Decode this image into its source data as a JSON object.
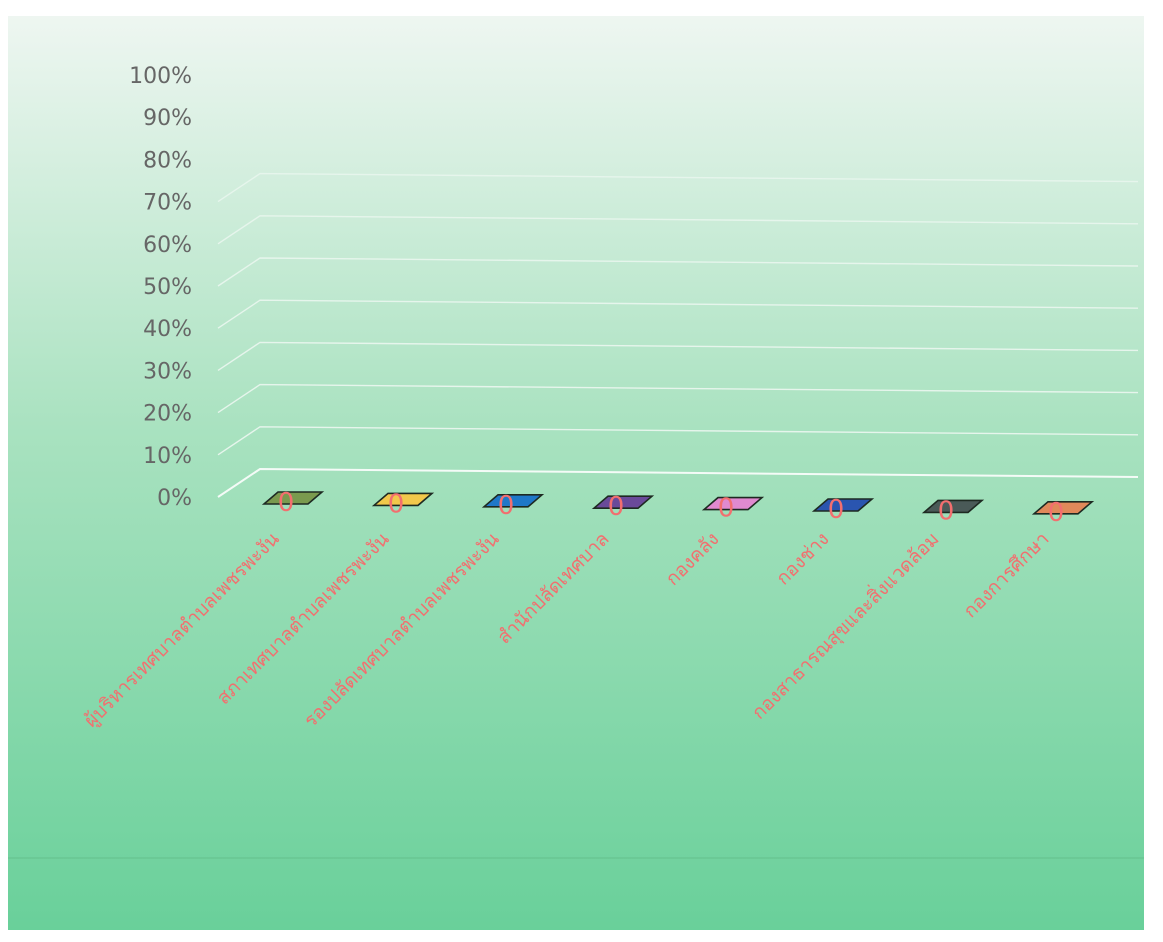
{
  "chart_data": {
    "type": "bar",
    "three_d": true,
    "title": "",
    "xlabel": "",
    "ylabel": "",
    "ylim": [
      0,
      100
    ],
    "y_unit": "%",
    "y_ticks": [
      "0%",
      "10%",
      "20%",
      "30%",
      "40%",
      "50%",
      "60%",
      "70%",
      "80%",
      "90%",
      "100%"
    ],
    "grid": true,
    "legend": "none",
    "categories": [
      "ผู้บริหารเทศบาลตำบลเพชรพะงัน",
      "สภาเทศบาลตำบลเพชรพะงัน",
      "รองปลัดเทศบาลตำบลเพชรพะงัน",
      "สำนักปลัดเทศบาล",
      "กองคลัง",
      "กองช่าง",
      "กองสาธารณสุขและสิ่งแวดล้อม",
      "กองการศึกษา"
    ],
    "values": [
      0,
      0,
      0,
      0,
      0,
      0,
      0,
      0
    ],
    "data_labels": [
      "0",
      "0",
      "0",
      "0",
      "0",
      "0",
      "0",
      "0"
    ],
    "bar_colors": [
      "#7a9a4e",
      "#f2c84b",
      "#1f78c8",
      "#6a4a9a",
      "#e08ad0",
      "#2a55b0",
      "#4a5a58",
      "#e0895a"
    ],
    "label_color": "#f26f6f",
    "axis_text_color": "#666666",
    "background": {
      "top": "#eef6f1",
      "bottom": "#69d09a"
    }
  }
}
